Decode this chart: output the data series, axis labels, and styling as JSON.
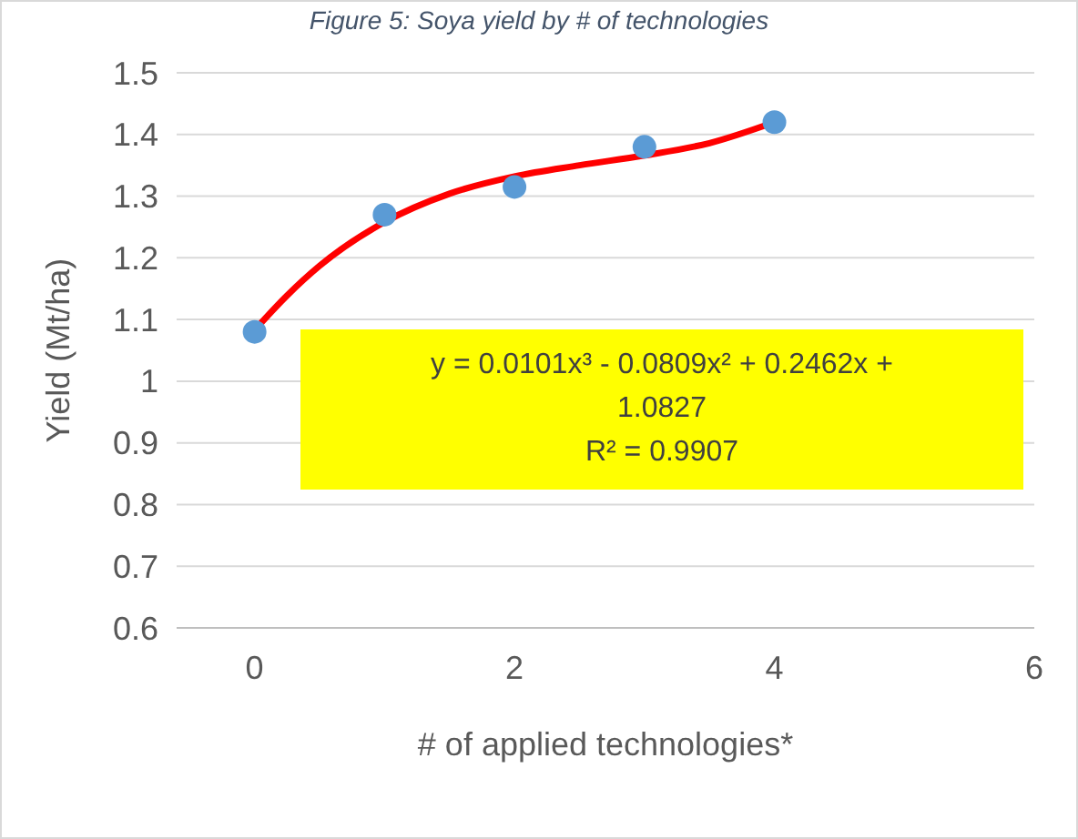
{
  "chart_data": {
    "type": "scatter",
    "title": "Figure 5: Soya yield by # of technologies",
    "xlabel": "# of applied technologies*",
    "ylabel": "Yield (Mt/ha)",
    "x": [
      0,
      1,
      2,
      3,
      4
    ],
    "series": [
      {
        "color": "#5b9bd5",
        "marker": "circle",
        "values": [
          1.08,
          1.27,
          1.315,
          1.38,
          1.42
        ]
      },
      {
        "type": "line",
        "color": "#ff0000",
        "marker": "none",
        "line_style": "solid",
        "x": [
          0,
          0.25,
          0.5,
          1,
          1.5,
          2,
          2.5,
          3,
          3.5,
          4
        ],
        "values": [
          1.083,
          1.139,
          1.187,
          1.258,
          1.304,
          1.332,
          1.35,
          1.366,
          1.386,
          1.42
        ]
      }
    ],
    "xlim": [
      -0.6,
      6
    ],
    "xticks": [
      0,
      2,
      4,
      6
    ],
    "ylim": [
      0.6,
      1.5
    ],
    "yticks": [
      0.6,
      0.7,
      0.8,
      0.9,
      1,
      1.1,
      1.2,
      1.3,
      1.4,
      1.5
    ],
    "grid": "y",
    "annotations": [
      "y = 0.0101x³ - 0.0809x² + 0.2462x + 1.0827",
      "R² = 0.9907"
    ]
  }
}
